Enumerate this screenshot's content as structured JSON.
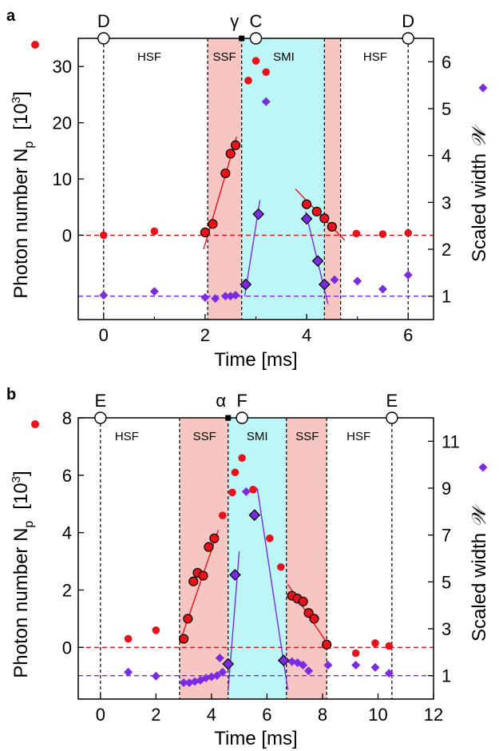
{
  "colors": {
    "red": "#e8121a",
    "blue": "#7b2be2",
    "ssf_fill": "#f7c5c2",
    "smi_fill": "#bdf6f6"
  },
  "chart_data": [
    {
      "panel": "a",
      "type": "scatter",
      "xlabel": "Time [ms]",
      "ylabel_left": "Photon number N",
      "ylabel_left_sub": "p",
      "ylabel_left_unit": "[10",
      "ylabel_left_exp": "3",
      "ylabel_left_close": "]",
      "ylabel_right": "Scaled width",
      "ylabel_right_symbol": "𝒲",
      "xlim": [
        -0.5,
        6.5
      ],
      "ylim_left": [
        -15,
        35
      ],
      "ylim_right": [
        0.5,
        6.5
      ],
      "xticks": [
        0,
        2,
        4,
        6
      ],
      "yticks_left": [
        0,
        10,
        20,
        30
      ],
      "yticks_right": [
        1,
        2,
        3,
        4,
        5,
        6
      ],
      "phases": [
        {
          "label": "HSF",
          "from": -0.5,
          "to": 2.05,
          "fill": "none",
          "label_x": 0.9
        },
        {
          "label": "SSF",
          "from": 2.05,
          "to": 2.72,
          "fill": "ssf",
          "label_x": 2.38
        },
        {
          "label": "SMI",
          "from": 2.72,
          "to": 4.35,
          "fill": "smi",
          "label_x": 3.55
        },
        {
          "label": "SSF",
          "from": 4.35,
          "to": 4.67,
          "fill": "ssf",
          "label_x": null
        },
        {
          "label": "HSF",
          "from": 4.67,
          "to": 6.5,
          "fill": "none",
          "label_x": 5.35
        }
      ],
      "point_labels": [
        {
          "label": "D",
          "x": 0,
          "marker": "circle"
        },
        {
          "label": "γ",
          "x": 2.72,
          "marker": "square"
        },
        {
          "label": "C",
          "x": 3.0,
          "marker": "circle"
        },
        {
          "label": "D",
          "x": 6.0,
          "marker": "circle"
        }
      ],
      "photon_reference": 0,
      "width_reference": 1.0,
      "photon_series": {
        "name": "Photon number",
        "circled": [
          [
            2.0,
            0.5
          ],
          [
            2.15,
            2.0
          ],
          [
            2.4,
            11.0
          ],
          [
            2.5,
            14.5
          ],
          [
            2.6,
            16.0
          ],
          [
            4.0,
            5.5
          ],
          [
            4.2,
            4.2
          ],
          [
            4.35,
            3.0
          ],
          [
            4.5,
            1.5
          ]
        ],
        "plain": [
          [
            0,
            0.0
          ],
          [
            1,
            0.7
          ],
          [
            2.85,
            27.5
          ],
          [
            3.0,
            31.0
          ],
          [
            3.2,
            29.0
          ],
          [
            4.98,
            0.3
          ],
          [
            5.5,
            0.2
          ],
          [
            6.0,
            0.4
          ]
        ]
      },
      "width_series": {
        "name": "Scaled width",
        "outlined": [
          [
            2.8,
            1.25
          ],
          [
            3.05,
            2.75
          ],
          [
            4.0,
            2.65
          ],
          [
            4.22,
            1.75
          ],
          [
            4.35,
            1.25
          ]
        ],
        "plain": [
          [
            0,
            1.02
          ],
          [
            1,
            1.1
          ],
          [
            2.0,
            0.97
          ],
          [
            2.2,
            0.95
          ],
          [
            2.4,
            1.0
          ],
          [
            2.5,
            1.0
          ],
          [
            2.6,
            1.02
          ],
          [
            3.2,
            5.15
          ],
          [
            4.55,
            1.35
          ],
          [
            5.0,
            1.32
          ],
          [
            5.5,
            1.15
          ],
          [
            6.0,
            1.45
          ]
        ]
      },
      "fit_lines_photon": [
        [
          [
            1.97,
            -2.5
          ],
          [
            2.62,
            17.5
          ]
        ],
        [
          [
            3.78,
            8.2
          ],
          [
            4.75,
            -0.9
          ]
        ]
      ],
      "fit_lines_width": [
        [
          [
            2.78,
            1.0
          ],
          [
            3.08,
            3.05
          ]
        ],
        [
          [
            3.98,
            2.8
          ],
          [
            4.42,
            0.83
          ]
        ]
      ]
    },
    {
      "panel": "b",
      "type": "scatter",
      "xlabel": "Time [ms]",
      "ylabel_left": "Photon number N",
      "ylabel_left_sub": "p",
      "ylabel_left_unit": "[10",
      "ylabel_left_exp": "3",
      "ylabel_left_close": "]",
      "ylabel_right": "Scaled width",
      "ylabel_right_symbol": "𝒲",
      "xlim": [
        -0.8,
        12
      ],
      "ylim_left": [
        -1.8,
        8
      ],
      "ylim_right": [
        0,
        12
      ],
      "xticks": [
        0,
        2,
        4,
        6,
        8,
        10,
        12
      ],
      "yticks_left": [
        0,
        2,
        4,
        6,
        8
      ],
      "yticks_right": [
        1,
        3,
        5,
        7,
        9,
        11
      ],
      "phases": [
        {
          "label": "HSF",
          "from": -0.8,
          "to": 2.85,
          "fill": "none",
          "label_x": 0.95
        },
        {
          "label": "SSF",
          "from": 2.85,
          "to": 4.6,
          "fill": "ssf",
          "label_x": 3.75
        },
        {
          "label": "SMI",
          "from": 4.6,
          "to": 6.7,
          "fill": "smi",
          "label_x": 5.65
        },
        {
          "label": "SSF",
          "from": 6.7,
          "to": 8.15,
          "fill": "ssf",
          "label_x": 7.45
        },
        {
          "label": "HSF",
          "from": 8.15,
          "to": 12,
          "fill": "none",
          "label_x": 9.3
        }
      ],
      "point_labels": [
        {
          "label": "E",
          "x": 0,
          "marker": "circle"
        },
        {
          "label": "α",
          "x": 4.6,
          "marker": "square"
        },
        {
          "label": "F",
          "x": 5.1,
          "marker": "circle"
        },
        {
          "label": "E",
          "x": 10.5,
          "marker": "circle"
        }
      ],
      "photon_reference": 0,
      "width_reference": 1.0,
      "photon_series": {
        "name": "Photon number",
        "circled": [
          [
            3.0,
            0.3
          ],
          [
            3.15,
            1.0
          ],
          [
            3.35,
            2.3
          ],
          [
            3.5,
            2.6
          ],
          [
            3.7,
            2.5
          ],
          [
            3.9,
            3.5
          ],
          [
            4.1,
            3.8
          ],
          [
            6.9,
            1.8
          ],
          [
            7.1,
            1.7
          ],
          [
            7.3,
            1.6
          ],
          [
            7.5,
            1.2
          ],
          [
            7.7,
            1.0
          ],
          [
            8.15,
            0.1
          ]
        ],
        "plain": [
          [
            1.0,
            0.3
          ],
          [
            2.0,
            0.6
          ],
          [
            4.4,
            4.6
          ],
          [
            4.75,
            5.4
          ],
          [
            4.85,
            6.1
          ],
          [
            5.1,
            6.6
          ],
          [
            5.5,
            5.5
          ],
          [
            6.1,
            3.8
          ],
          [
            6.5,
            2.8
          ],
          [
            9.2,
            -0.2
          ],
          [
            9.9,
            0.15
          ],
          [
            10.4,
            0.05
          ]
        ]
      },
      "width_series": {
        "name": "Scaled width",
        "outlined": [
          [
            4.6,
            1.5
          ],
          [
            4.85,
            5.3
          ],
          [
            5.55,
            7.85
          ],
          [
            6.6,
            1.65
          ]
        ],
        "plain": [
          [
            1.0,
            1.15
          ],
          [
            2.0,
            0.98
          ],
          [
            3.0,
            0.7
          ],
          [
            3.2,
            0.7
          ],
          [
            3.4,
            0.75
          ],
          [
            3.6,
            0.8
          ],
          [
            3.8,
            0.9
          ],
          [
            4.0,
            0.95
          ],
          [
            4.2,
            1.0
          ],
          [
            4.4,
            1.15
          ],
          [
            4.3,
            1.75
          ],
          [
            5.25,
            8.85
          ],
          [
            6.9,
            1.6
          ],
          [
            7.1,
            1.55
          ],
          [
            7.3,
            1.45
          ],
          [
            7.5,
            1.2
          ],
          [
            8.2,
            1.45
          ],
          [
            9.2,
            1.45
          ],
          [
            9.9,
            1.35
          ],
          [
            10.4,
            1.1
          ]
        ]
      },
      "fit_lines_photon": [
        [
          [
            2.85,
            0.15
          ],
          [
            4.25,
            4.1
          ]
        ],
        [
          [
            6.75,
            2.2
          ],
          [
            8.3,
            -0.05
          ]
        ]
      ],
      "fit_lines_width": [
        [
          [
            4.6,
            0.35
          ],
          [
            5.0,
            6.3
          ]
        ],
        [
          [
            5.65,
            9.0
          ],
          [
            6.75,
            0.4
          ]
        ]
      ]
    }
  ]
}
